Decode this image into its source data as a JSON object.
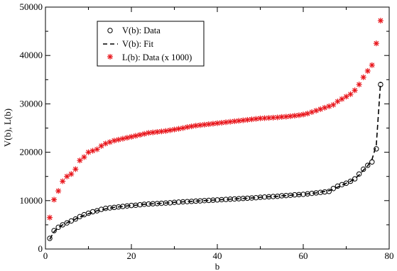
{
  "chart_data": {
    "type": "scatter",
    "xlabel": "b",
    "ylabel": "V(b), L(b)",
    "xlim": [
      0,
      80
    ],
    "ylim": [
      0,
      50000
    ],
    "xticks": [
      0,
      20,
      40,
      60,
      80
    ],
    "yticks": [
      0,
      10000,
      20000,
      30000,
      40000,
      50000
    ],
    "x_tick_labels": [
      "0",
      "20",
      "40",
      "60",
      "80"
    ],
    "y_tick_labels": [
      "0",
      "10000",
      "20000",
      "30000",
      "40000",
      "50000"
    ],
    "grid": false,
    "legend_position": "top-left",
    "x": [
      1,
      2,
      3,
      4,
      5,
      6,
      7,
      8,
      9,
      10,
      11,
      12,
      13,
      14,
      15,
      16,
      17,
      18,
      19,
      20,
      21,
      22,
      23,
      24,
      25,
      26,
      27,
      28,
      29,
      30,
      31,
      32,
      33,
      34,
      35,
      36,
      37,
      38,
      39,
      40,
      41,
      42,
      43,
      44,
      45,
      46,
      47,
      48,
      49,
      50,
      51,
      52,
      53,
      54,
      55,
      56,
      57,
      58,
      59,
      60,
      61,
      62,
      63,
      64,
      65,
      66,
      67,
      68,
      69,
      70,
      71,
      72,
      73,
      74,
      75,
      76,
      77,
      78
    ],
    "series": [
      {
        "name": "V(b): Data",
        "marker": "open-circle",
        "color": "#000000",
        "values": [
          2200,
          3800,
          4500,
          5000,
          5400,
          5800,
          6200,
          6700,
          7100,
          7400,
          7700,
          7900,
          8200,
          8400,
          8500,
          8600,
          8700,
          8800,
          8900,
          9000,
          9050,
          9150,
          9250,
          9300,
          9350,
          9400,
          9450,
          9500,
          9550,
          9650,
          9700,
          9750,
          9800,
          9850,
          9900,
          9950,
          10000,
          10050,
          10100,
          10150,
          10200,
          10250,
          10300,
          10350,
          10400,
          10450,
          10500,
          10550,
          10600,
          10700,
          10750,
          10800,
          10850,
          10900,
          11000,
          11050,
          11100,
          11200,
          11250,
          11300,
          11400,
          11500,
          11600,
          11700,
          11800,
          11900,
          12500,
          13000,
          13300,
          13600,
          14000,
          14500,
          15500,
          16500,
          17300,
          18000,
          20700,
          34000
        ]
      },
      {
        "name": "V(b): Fit",
        "line_style": "dashed",
        "color": "#000000",
        "values": [
          2000,
          3600,
          4400,
          5000,
          5400,
          5800,
          6200,
          6600,
          7000,
          7300,
          7600,
          7900,
          8100,
          8300,
          8450,
          8600,
          8700,
          8800,
          8900,
          9000,
          9050,
          9150,
          9250,
          9300,
          9350,
          9400,
          9450,
          9500,
          9550,
          9650,
          9700,
          9750,
          9800,
          9850,
          9900,
          9950,
          10000,
          10050,
          10100,
          10150,
          10200,
          10250,
          10300,
          10350,
          10400,
          10450,
          10500,
          10550,
          10600,
          10700,
          10750,
          10800,
          10850,
          10900,
          11000,
          11050,
          11100,
          11200,
          11250,
          11300,
          11400,
          11500,
          11600,
          11750,
          11900,
          12050,
          12400,
          12800,
          13200,
          13600,
          14000,
          14500,
          15300,
          16300,
          17200,
          18500,
          21500,
          34500
        ]
      },
      {
        "name": "L(b): Data (x 1000)",
        "marker": "asterisk",
        "color": "#e8141a",
        "values": [
          6500,
          10200,
          12000,
          14000,
          15000,
          15500,
          16500,
          18300,
          19000,
          20000,
          20300,
          20600,
          21300,
          21800,
          22100,
          22400,
          22600,
          22800,
          23000,
          23200,
          23400,
          23600,
          23800,
          24000,
          24100,
          24200,
          24300,
          24400,
          24550,
          24700,
          24850,
          25000,
          25200,
          25350,
          25500,
          25600,
          25700,
          25800,
          25900,
          26000,
          26100,
          26200,
          26300,
          26400,
          26500,
          26600,
          26700,
          26800,
          26900,
          27000,
          27050,
          27100,
          27150,
          27200,
          27300,
          27350,
          27450,
          27550,
          27650,
          27800,
          28000,
          28300,
          28600,
          28900,
          29200,
          29500,
          29800,
          30500,
          31000,
          31500,
          32000,
          32800,
          34000,
          35500,
          36800,
          38000,
          42500,
          47200
        ]
      }
    ]
  }
}
